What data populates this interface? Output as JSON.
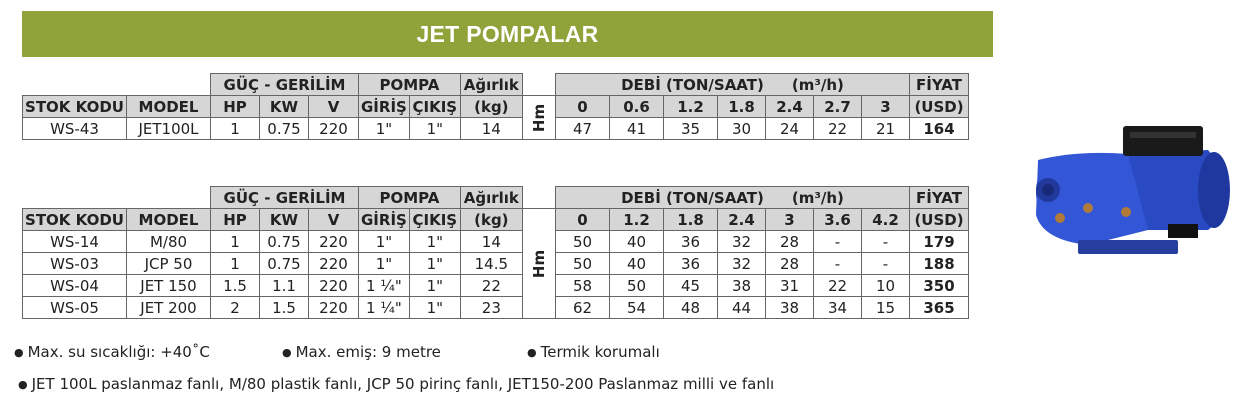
{
  "banner": "JET POMPALAR",
  "table1": {
    "groups": {
      "power": "GÜÇ - GERİLİM",
      "pump": "POMPA",
      "weight": "Ağırlık",
      "flow": "DEBİ (TON/SAAT)",
      "unit": "(m³/h)",
      "price": "FİYAT"
    },
    "cols": {
      "stock": "STOK KODU",
      "model": "MODEL",
      "hp": "HP",
      "kw": "KW",
      "v": "V",
      "inlet": "GİRİŞ",
      "outlet": "ÇIKIŞ",
      "weight_unit": "(kg)",
      "price_unit": "(USD)"
    },
    "hm": "Hm",
    "flows": [
      "0",
      "0.6",
      "1.2",
      "1.8",
      "2.4",
      "2.7",
      "3"
    ],
    "rows": [
      {
        "stock": "WS-43",
        "model": "JET100L",
        "hp": "1",
        "kw": "0.75",
        "v": "220",
        "inlet": "1\"",
        "outlet": "1\"",
        "weight": "14",
        "heads": [
          "47",
          "41",
          "35",
          "30",
          "24",
          "22",
          "21"
        ],
        "price": "164"
      }
    ]
  },
  "table2": {
    "groups": {
      "power": "GÜÇ - GERİLİM",
      "pump": "POMPA",
      "weight": "Ağırlık",
      "flow": "DEBİ (TON/SAAT)",
      "unit": "(m³/h)",
      "price": "FİYAT"
    },
    "cols": {
      "stock": "STOK KODU",
      "model": "MODEL",
      "hp": "HP",
      "kw": "KW",
      "v": "V",
      "inlet": "GİRİŞ",
      "outlet": "ÇIKIŞ",
      "weight_unit": "(kg)",
      "price_unit": "(USD)"
    },
    "hm": "Hm",
    "flows": [
      "0",
      "1.2",
      "1.8",
      "2.4",
      "3",
      "3.6",
      "4.2"
    ],
    "rows": [
      {
        "stock": "WS-14",
        "model": "M/80",
        "hp": "1",
        "kw": "0.75",
        "v": "220",
        "inlet": "1\"",
        "outlet": "1\"",
        "weight": "14",
        "heads": [
          "50",
          "40",
          "36",
          "32",
          "28",
          "-",
          "-"
        ],
        "price": "179"
      },
      {
        "stock": "WS-03",
        "model": "JCP 50",
        "hp": "1",
        "kw": "0.75",
        "v": "220",
        "inlet": "1\"",
        "outlet": "1\"",
        "weight": "14.5",
        "heads": [
          "50",
          "40",
          "36",
          "32",
          "28",
          "-",
          "-"
        ],
        "price": "188"
      },
      {
        "stock": "WS-04",
        "model": "JET 150",
        "hp": "1.5",
        "kw": "1.1",
        "v": "220",
        "inlet": "1 ¼\"",
        "outlet": "1\"",
        "weight": "22",
        "heads": [
          "58",
          "50",
          "45",
          "38",
          "31",
          "22",
          "10"
        ],
        "price": "350"
      },
      {
        "stock": "WS-05",
        "model": "JET 200",
        "hp": "2",
        "kw": "1.5",
        "v": "220",
        "inlet": "1 ¼\"",
        "outlet": "1\"",
        "weight": "23",
        "heads": [
          "62",
          "54",
          "48",
          "44",
          "38",
          "34",
          "15"
        ],
        "price": "365"
      }
    ]
  },
  "notes": {
    "temp": "Max. su sıcaklığı: +40˚C",
    "suction": "Max. emiş: 9 metre",
    "thermal": "Termik korumalı",
    "models": "JET 100L paslanmaz fanlı, M/80 plastik fanlı, JCP 50 pirinç fanlı, JET150-200 Paslanmaz milli ve fanlı"
  },
  "colors": {
    "banner": "#8fa33a",
    "header_gray": "#d6d6d6",
    "pump_blue": "#2f4fc8"
  }
}
